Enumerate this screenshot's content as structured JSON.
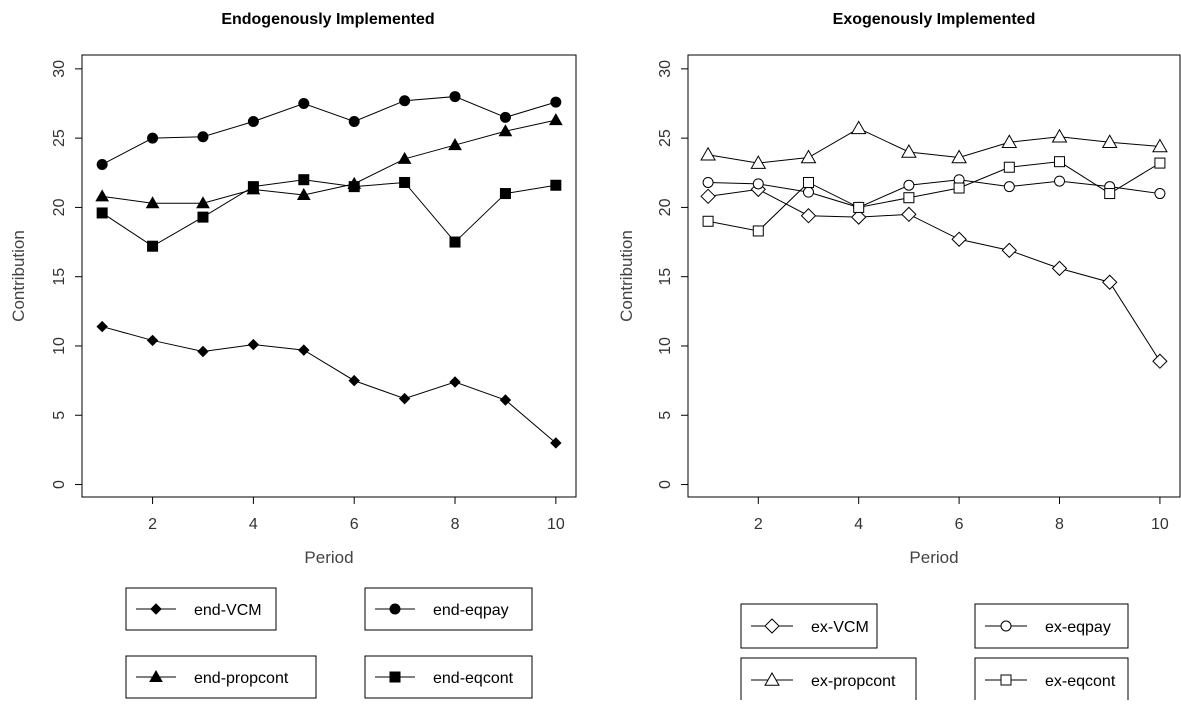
{
  "chart_data": [
    {
      "type": "line",
      "title": "Endogenously Implemented",
      "xlabel": "Period",
      "ylabel": "Contribution",
      "x": [
        1,
        2,
        3,
        4,
        5,
        6,
        7,
        8,
        9,
        10
      ],
      "xticks": [
        "2",
        "4",
        "6",
        "8",
        "10"
      ],
      "yticks": [
        "0",
        "5",
        "10",
        "15",
        "20",
        "25",
        "30"
      ],
      "xlim": [
        0.6,
        10.4
      ],
      "ylim": [
        -0.9,
        31
      ],
      "grid": false,
      "legend_position": "bottom",
      "series": [
        {
          "name": "end-VCM",
          "marker": "filled-diamond",
          "values": [
            11.4,
            10.4,
            9.6,
            10.1,
            9.7,
            7.5,
            6.2,
            7.4,
            6.1,
            3.0
          ]
        },
        {
          "name": "end-eqpay",
          "marker": "filled-circle",
          "values": [
            23.1,
            25.0,
            25.1,
            26.2,
            27.5,
            26.2,
            27.7,
            28.0,
            26.5,
            27.6
          ]
        },
        {
          "name": "end-propcont",
          "marker": "filled-triangle",
          "values": [
            20.8,
            20.3,
            20.3,
            21.3,
            20.9,
            21.7,
            23.5,
            24.5,
            25.5,
            26.3
          ]
        },
        {
          "name": "end-eqcont",
          "marker": "filled-square",
          "values": [
            19.6,
            17.2,
            19.3,
            21.5,
            22.0,
            21.5,
            21.8,
            17.5,
            21.0,
            21.6
          ]
        }
      ]
    },
    {
      "type": "line",
      "title": "Exogenously Implemented",
      "xlabel": "Period",
      "ylabel": "Contribution",
      "x": [
        1,
        2,
        3,
        4,
        5,
        6,
        7,
        8,
        9,
        10
      ],
      "xticks": [
        "2",
        "4",
        "6",
        "8",
        "10"
      ],
      "yticks": [
        "0",
        "5",
        "10",
        "15",
        "20",
        "25",
        "30"
      ],
      "xlim": [
        0.6,
        10.4
      ],
      "ylim": [
        -0.9,
        31
      ],
      "grid": false,
      "legend_position": "bottom",
      "series": [
        {
          "name": "ex-VCM",
          "marker": "open-diamond",
          "values": [
            20.8,
            21.3,
            19.4,
            19.3,
            19.5,
            17.7,
            16.9,
            15.6,
            14.6,
            8.9
          ]
        },
        {
          "name": "ex-eqpay",
          "marker": "open-circle",
          "values": [
            21.8,
            21.7,
            21.1,
            20.0,
            21.6,
            22.0,
            21.5,
            21.9,
            21.5,
            21.0
          ]
        },
        {
          "name": "ex-propcont",
          "marker": "open-triangle",
          "values": [
            23.8,
            23.2,
            23.6,
            25.7,
            24.0,
            23.6,
            24.7,
            25.1,
            24.7,
            24.4
          ]
        },
        {
          "name": "ex-eqcont",
          "marker": "open-square",
          "values": [
            19.0,
            18.3,
            21.8,
            20.0,
            20.7,
            21.4,
            22.9,
            23.3,
            21.0,
            23.2
          ]
        }
      ]
    }
  ]
}
